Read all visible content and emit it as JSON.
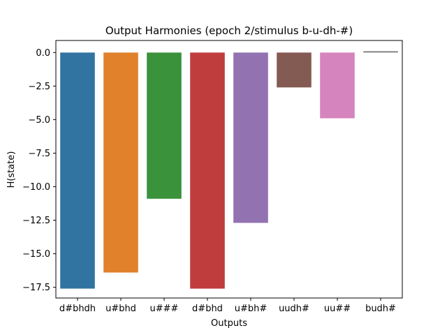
{
  "chart_data": {
    "type": "bar",
    "title": "Output Harmonies (epoch 2/stimulus b-u-dh-#)",
    "xlabel": "Outputs",
    "ylabel": "H(state)",
    "categories": [
      "d#bhdh",
      "u#bhd",
      "u###",
      "d#bhd",
      "u#bh#",
      "uudh#",
      "uu##",
      "budh#"
    ],
    "values": [
      -17.6,
      -16.4,
      -10.9,
      -17.6,
      -12.7,
      -2.6,
      -4.9,
      0.1
    ],
    "colors": [
      "#3274a1",
      "#e1812c",
      "#3a923a",
      "#c03d3e",
      "#9372b2",
      "#845b53",
      "#d684bd",
      "#7f7f7f"
    ],
    "ylim": [
      -18.3,
      0.9
    ],
    "yticks": [
      0.0,
      -2.5,
      -5.0,
      -7.5,
      -10.0,
      -12.5,
      -15.0,
      -17.5
    ],
    "ytick_labels": [
      "0.0",
      "−2.5",
      "−5.0",
      "−7.5",
      "−10.0",
      "−12.5",
      "−15.0",
      "−17.5"
    ],
    "grid": false,
    "legend": "none"
  }
}
